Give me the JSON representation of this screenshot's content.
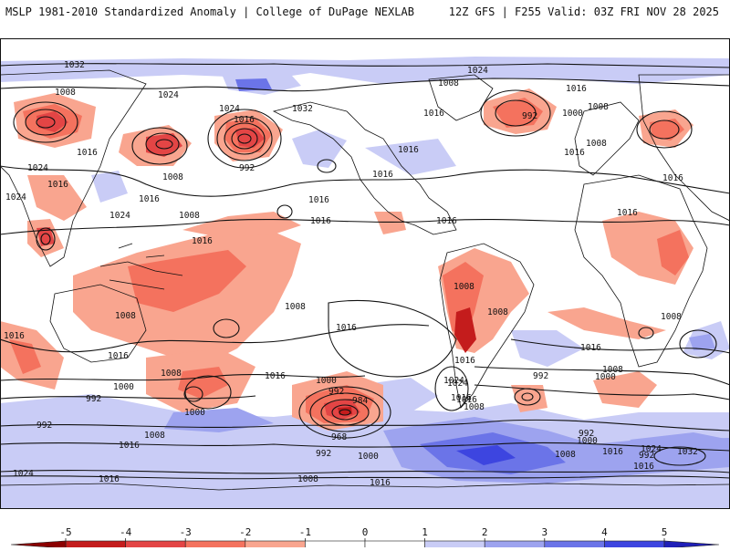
{
  "header": {
    "left_title": "MSLP 1981-2010 Standardized Anomaly | College of DuPage NEXLAB",
    "right_title": "12Z GFS | F255 Valid: 03Z FRI NOV 28 2025"
  },
  "map": {
    "variable": "MSLP standardized anomaly",
    "contour_labels": [
      "1032",
      "1024",
      "1008",
      "1024",
      "1016",
      "1032",
      "1016",
      "1008",
      "992",
      "1000",
      "1024",
      "1016",
      "1016",
      "1008",
      "992",
      "1016",
      "1008",
      "1024",
      "1016",
      "1016",
      "1024",
      "1016",
      "1008",
      "1016",
      "1016",
      "1016",
      "1024",
      "1016",
      "1008",
      "1016",
      "1016",
      "1016",
      "1008",
      "1008",
      "1016",
      "1016",
      "1008",
      "1008",
      "1016",
      "1000",
      "992",
      "1008",
      "1000",
      "1016",
      "1008",
      "1000",
      "992",
      "984",
      "968",
      "992",
      "992",
      "1000",
      "1008",
      "1024",
      "1016",
      "1008",
      "1016",
      "1000",
      "992",
      "1016",
      "1024",
      "1000",
      "1016",
      "1016",
      "1008",
      "992",
      "992",
      "1008",
      "1016",
      "1016",
      "1024",
      "1008",
      "1032",
      "1016",
      "1016",
      "1024"
    ],
    "colors": {
      "ocean": "#ffffff",
      "coast": "#111111",
      "contour": "#111111"
    }
  },
  "colorbar": {
    "ticks": [
      "-5",
      "-4",
      "-3",
      "-2",
      "-1",
      "0",
      "1",
      "2",
      "3",
      "4",
      "5"
    ],
    "bins": [
      {
        "from": -5,
        "to": -4,
        "color": "#c41c1c"
      },
      {
        "from": -4,
        "to": -3,
        "color": "#e34545"
      },
      {
        "from": -3,
        "to": -2,
        "color": "#f4725e"
      },
      {
        "from": -2,
        "to": -1,
        "color": "#f9a58f"
      },
      {
        "from": -1,
        "to": 0,
        "color": "#ffffff"
      },
      {
        "from": 0,
        "to": 1,
        "color": "#ffffff"
      },
      {
        "from": 1,
        "to": 2,
        "color": "#c9ccf6"
      },
      {
        "from": 2,
        "to": 3,
        "color": "#9da3ef"
      },
      {
        "from": 3,
        "to": 4,
        "color": "#6b74e8"
      },
      {
        "from": 4,
        "to": 5,
        "color": "#3d45e0"
      }
    ],
    "low_color": "#8b0000",
    "high_color": "#1f1fb8"
  }
}
